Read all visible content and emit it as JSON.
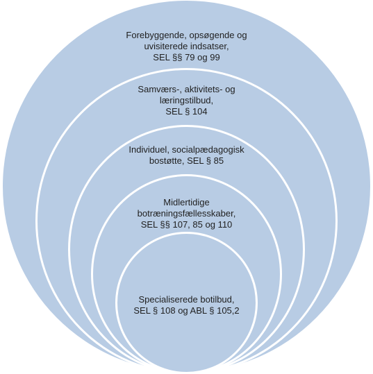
{
  "colors": {
    "fill": "#b8cce4",
    "stroke": "#ffffff",
    "text": "#1f1f1f"
  },
  "levels": [
    {
      "lines": [
        "Forebyggende, opsøgende og",
        "uvisiterede indsatser,",
        "SEL §§ 79 og 99"
      ]
    },
    {
      "lines": [
        "Samværs-, aktivitets- og",
        "læringstilbud,",
        "SEL § 104"
      ]
    },
    {
      "lines": [
        "Individuel, socialpædagogisk",
        "bostøtte, SEL § 85"
      ]
    },
    {
      "lines": [
        "Midlertidige",
        "botræningsfællesskaber,",
        "SEL §§ 107, 85 og 110"
      ]
    },
    {
      "lines": [
        "Specialiserede botilbud,",
        "SEL § 108 og ABL § 105,2"
      ]
    }
  ]
}
